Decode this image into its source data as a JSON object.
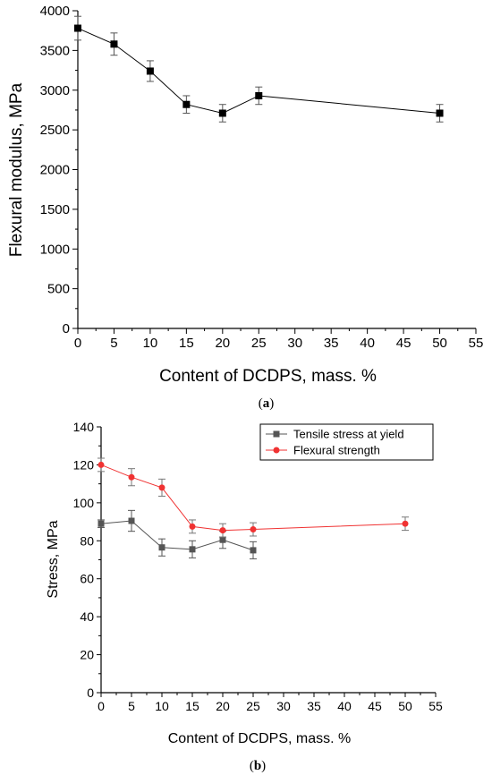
{
  "chart_data": [
    {
      "type": "line",
      "caption": "(a)",
      "caption_letter": "a",
      "xlabel": "Content of DCDPS, mass. %",
      "ylabel": "Flexural modulus, MPa",
      "xlim": [
        0,
        55
      ],
      "ylim": [
        0,
        4000
      ],
      "xticks": [
        0,
        5,
        10,
        15,
        20,
        25,
        30,
        35,
        40,
        45,
        50,
        55
      ],
      "yticks": [
        0,
        500,
        1000,
        1500,
        2000,
        2500,
        3000,
        3500,
        4000
      ],
      "grid": false,
      "series": [
        {
          "color": "#000000",
          "marker": "square",
          "x": [
            0,
            5,
            10,
            15,
            20,
            25,
            50
          ],
          "y": [
            3780,
            3580,
            3240,
            2820,
            2710,
            2930,
            2710
          ],
          "err": [
            150,
            140,
            130,
            110,
            110,
            110,
            110
          ]
        }
      ]
    },
    {
      "type": "line",
      "caption": "(b)",
      "caption_letter": "b",
      "xlabel": "Content of DCDPS, mass. %",
      "ylabel": "Stress, MPa",
      "xlim": [
        0,
        55
      ],
      "ylim": [
        0,
        140
      ],
      "xticks": [
        0,
        5,
        10,
        15,
        20,
        25,
        30,
        35,
        40,
        45,
        50,
        55
      ],
      "yticks": [
        0,
        20,
        40,
        60,
        80,
        100,
        120,
        140
      ],
      "grid": false,
      "legend": "top-right",
      "series": [
        {
          "name": "Tensile stress at yield",
          "color": "#555555",
          "marker": "square",
          "x": [
            0,
            5,
            10,
            15,
            20,
            25
          ],
          "y": [
            89,
            90.5,
            76.5,
            75.5,
            80.5,
            75
          ],
          "err": [
            2,
            5.5,
            4.5,
            4.5,
            4.5,
            4.5
          ]
        },
        {
          "name": "Flexural strength",
          "color": "#f03232",
          "marker": "circle",
          "x": [
            0,
            5,
            10,
            15,
            20,
            25,
            50
          ],
          "y": [
            120,
            113.5,
            108,
            87.5,
            85.5,
            86,
            89
          ],
          "err": [
            3.5,
            4.5,
            4.5,
            3.5,
            3.5,
            3.5,
            3.5
          ]
        }
      ]
    }
  ]
}
